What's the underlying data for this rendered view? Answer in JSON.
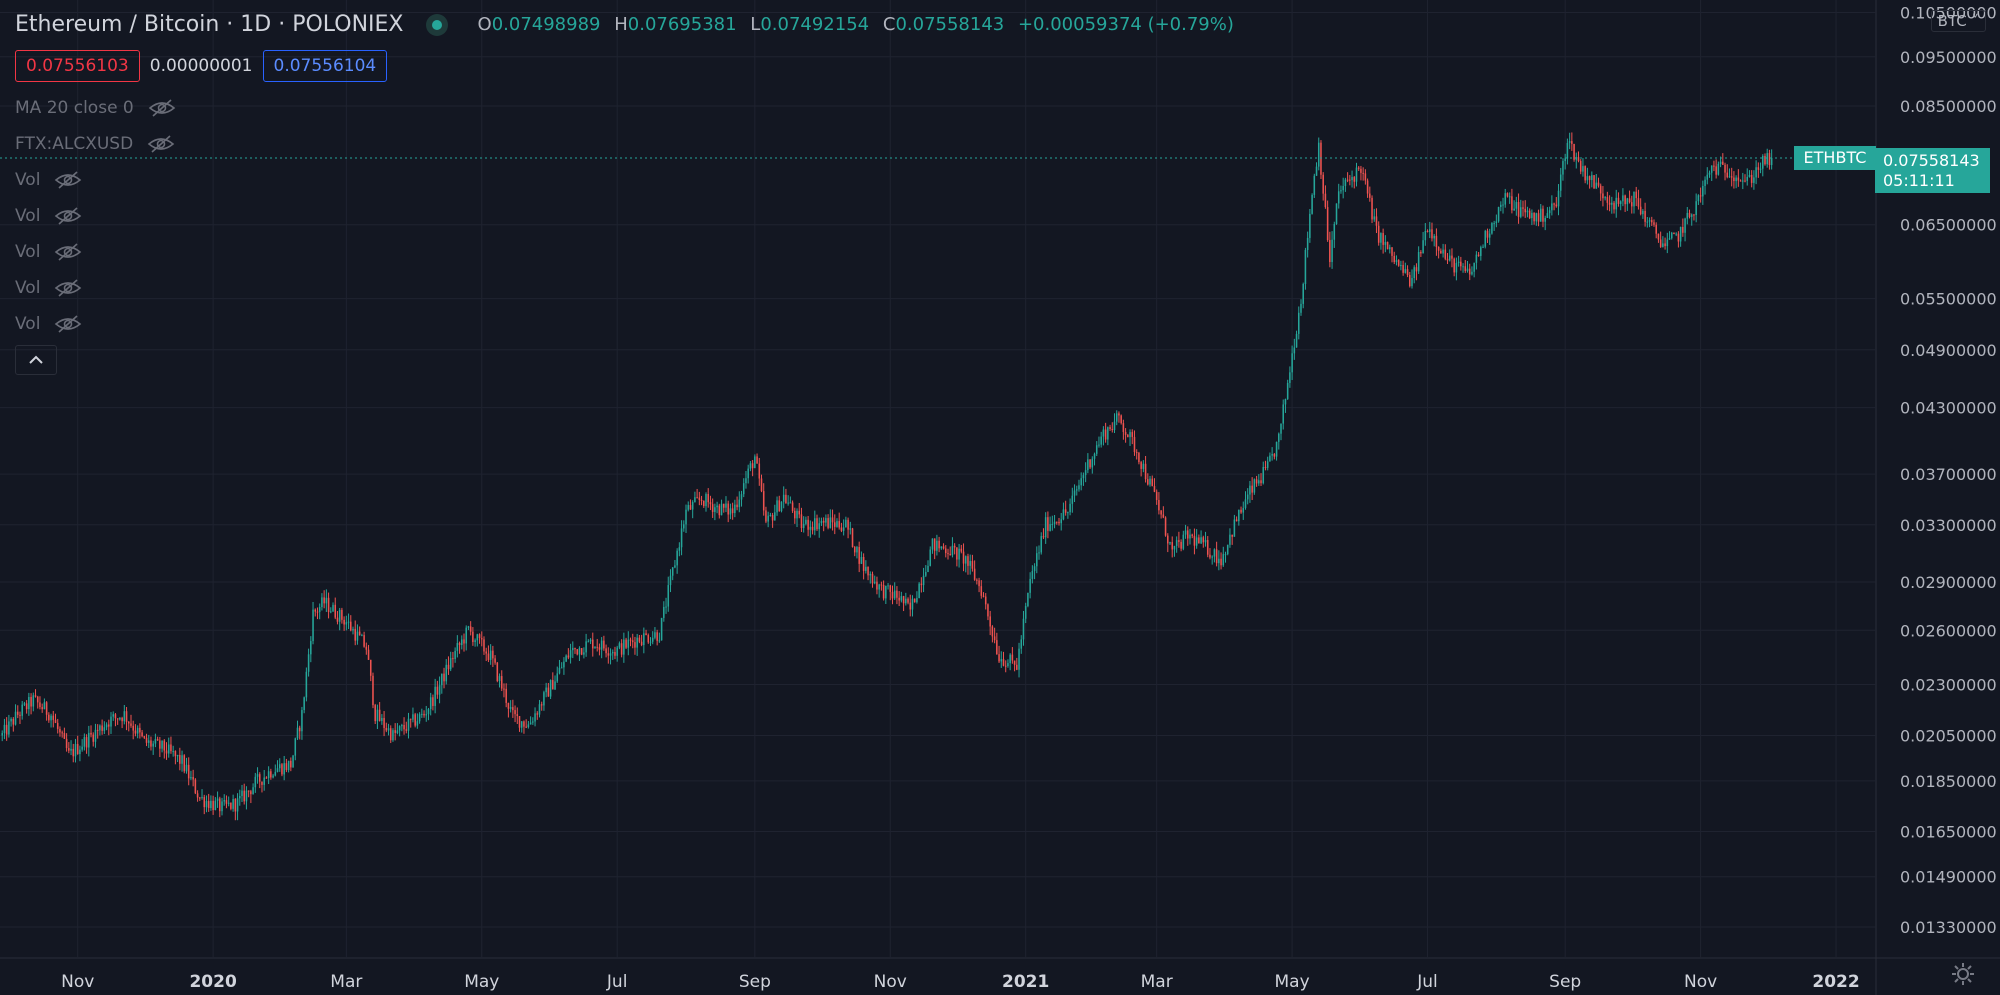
{
  "header": {
    "symbol_title": "Ethereum / Bitcoin · 1D · POLONIEX",
    "ohlc": {
      "o_label": "O",
      "o": "0.07498989",
      "h_label": "H",
      "h": "0.07695381",
      "l_label": "L",
      "l": "0.07492154",
      "c_label": "C",
      "c": "0.07558143",
      "change": "+0.00059374 (+0.79%)"
    }
  },
  "bid_ask": {
    "bid": "0.07556103",
    "spread": "0.00000001",
    "ask": "0.07556104"
  },
  "indicators": [
    {
      "label": "MA 20 close 0"
    },
    {
      "label": "FTX:ALCXUSD"
    },
    {
      "label": "Vol"
    },
    {
      "label": "Vol"
    },
    {
      "label": "Vol"
    },
    {
      "label": "Vol"
    },
    {
      "label": "Vol"
    }
  ],
  "price_scale": {
    "currency": "BTC",
    "symbol_tag": "ETHBTC",
    "last_price": "0.07558143",
    "countdown": "05:11:11"
  },
  "colors": {
    "up": "#26a69a",
    "down": "#ef5350",
    "background": "#131722",
    "grid": "#1f2330"
  },
  "chart_data": {
    "type": "candlestick",
    "title": "Ethereum / Bitcoin · 1D · POLONIEX",
    "y_scale": "log",
    "ylim": [
      0.0124,
      0.108
    ],
    "yticks": [
      "0.10500000",
      "0.09500000",
      "0.08500000",
      "0.07558143",
      "0.06500000",
      "0.05500000",
      "0.04900000",
      "0.04300000",
      "0.03700000",
      "0.03300000",
      "0.02900000",
      "0.02600000",
      "0.02300000",
      "0.02050000",
      "0.01850000",
      "0.01650000",
      "0.01490000",
      "0.01330000"
    ],
    "ytick_values": [
      0.105,
      0.095,
      0.085,
      0.07558143,
      0.065,
      0.055,
      0.049,
      0.043,
      0.037,
      0.033,
      0.029,
      0.026,
      0.023,
      0.0205,
      0.0185,
      0.0165,
      0.0149,
      0.0133
    ],
    "xlim": [
      "2019-09-27",
      "2022-01-19"
    ],
    "xticks": [
      {
        "label": "Nov",
        "date": "2019-11-01",
        "bold": false
      },
      {
        "label": "2020",
        "date": "2020-01-01",
        "bold": true
      },
      {
        "label": "Mar",
        "date": "2020-03-01",
        "bold": false
      },
      {
        "label": "May",
        "date": "2020-05-01",
        "bold": false
      },
      {
        "label": "Jul",
        "date": "2020-07-01",
        "bold": false
      },
      {
        "label": "Sep",
        "date": "2020-09-01",
        "bold": false
      },
      {
        "label": "Nov",
        "date": "2020-11-01",
        "bold": false
      },
      {
        "label": "2021",
        "date": "2021-01-01",
        "bold": true
      },
      {
        "label": "Mar",
        "date": "2021-03-01",
        "bold": false
      },
      {
        "label": "May",
        "date": "2021-05-01",
        "bold": false
      },
      {
        "label": "Jul",
        "date": "2021-07-01",
        "bold": false
      },
      {
        "label": "Sep",
        "date": "2021-09-01",
        "bold": false
      },
      {
        "label": "Nov",
        "date": "2021-11-01",
        "bold": false
      },
      {
        "label": "2022",
        "date": "2022-01-01",
        "bold": true
      }
    ],
    "last_price": 0.07558143,
    "approx_close_path": [
      [
        "2019-09-28",
        0.0205
      ],
      [
        "2019-10-05",
        0.0215
      ],
      [
        "2019-10-12",
        0.0222
      ],
      [
        "2019-10-20",
        0.0215
      ],
      [
        "2019-10-28",
        0.0196
      ],
      [
        "2019-11-05",
        0.0203
      ],
      [
        "2019-11-15",
        0.0212
      ],
      [
        "2019-11-22",
        0.0215
      ],
      [
        "2019-12-01",
        0.0202
      ],
      [
        "2019-12-10",
        0.0199
      ],
      [
        "2019-12-18",
        0.0193
      ],
      [
        "2019-12-26",
        0.0178
      ],
      [
        "2020-01-05",
        0.0174
      ],
      [
        "2020-01-12",
        0.0176
      ],
      [
        "2020-01-20",
        0.0184
      ],
      [
        "2020-01-28",
        0.019
      ],
      [
        "2020-02-05",
        0.0192
      ],
      [
        "2020-02-10",
        0.0215
      ],
      [
        "2020-02-15",
        0.027
      ],
      [
        "2020-02-20",
        0.0277
      ],
      [
        "2020-03-01",
        0.0265
      ],
      [
        "2020-03-10",
        0.025
      ],
      [
        "2020-03-14",
        0.0215
      ],
      [
        "2020-03-22",
        0.0205
      ],
      [
        "2020-04-05",
        0.0215
      ],
      [
        "2020-04-10",
        0.0225
      ],
      [
        "2020-04-18",
        0.0245
      ],
      [
        "2020-04-25",
        0.026
      ],
      [
        "2020-05-05",
        0.0245
      ],
      [
        "2020-05-15",
        0.0214
      ],
      [
        "2020-05-22",
        0.021
      ],
      [
        "2020-05-30",
        0.0225
      ],
      [
        "2020-06-10",
        0.0248
      ],
      [
        "2020-06-20",
        0.0253
      ],
      [
        "2020-06-30",
        0.0248
      ],
      [
        "2020-07-10",
        0.0255
      ],
      [
        "2020-07-20",
        0.0258
      ],
      [
        "2020-07-25",
        0.029
      ],
      [
        "2020-08-01",
        0.034
      ],
      [
        "2020-08-08",
        0.035
      ],
      [
        "2020-08-15",
        0.0343
      ],
      [
        "2020-08-22",
        0.034
      ],
      [
        "2020-09-01",
        0.0385
      ],
      [
        "2020-09-06",
        0.033
      ],
      [
        "2020-09-14",
        0.0352
      ],
      [
        "2020-09-22",
        0.033
      ],
      [
        "2020-10-01",
        0.0332
      ],
      [
        "2020-10-12",
        0.033
      ],
      [
        "2020-10-20",
        0.03
      ],
      [
        "2020-10-28",
        0.0285
      ],
      [
        "2020-11-05",
        0.028
      ],
      [
        "2020-11-10",
        0.0272
      ],
      [
        "2020-11-20",
        0.0315
      ],
      [
        "2020-11-28",
        0.0312
      ],
      [
        "2020-12-05",
        0.0305
      ],
      [
        "2020-12-12",
        0.0285
      ],
      [
        "2020-12-20",
        0.0245
      ],
      [
        "2020-12-28",
        0.024
      ],
      [
        "2021-01-03",
        0.029
      ],
      [
        "2021-01-10",
        0.033
      ],
      [
        "2021-01-20",
        0.034
      ],
      [
        "2021-01-28",
        0.0375
      ],
      [
        "2021-02-05",
        0.0405
      ],
      [
        "2021-02-12",
        0.042
      ],
      [
        "2021-02-20",
        0.039
      ],
      [
        "2021-03-01",
        0.0348
      ],
      [
        "2021-03-08",
        0.031
      ],
      [
        "2021-03-15",
        0.0322
      ],
      [
        "2021-03-22",
        0.0315
      ],
      [
        "2021-03-30",
        0.0305
      ],
      [
        "2021-04-05",
        0.033
      ],
      [
        "2021-04-12",
        0.0355
      ],
      [
        "2021-04-20",
        0.0375
      ],
      [
        "2021-04-25",
        0.04
      ],
      [
        "2021-05-01",
        0.0485
      ],
      [
        "2021-05-05",
        0.055
      ],
      [
        "2021-05-10",
        0.07
      ],
      [
        "2021-05-13",
        0.078
      ],
      [
        "2021-05-18",
        0.06
      ],
      [
        "2021-05-22",
        0.07
      ],
      [
        "2021-06-01",
        0.074
      ],
      [
        "2021-06-08",
        0.064
      ],
      [
        "2021-06-16",
        0.06
      ],
      [
        "2021-06-24",
        0.057
      ],
      [
        "2021-07-01",
        0.065
      ],
      [
        "2021-07-10",
        0.06
      ],
      [
        "2021-07-20",
        0.058
      ],
      [
        "2021-07-28",
        0.064
      ],
      [
        "2021-08-05",
        0.069
      ],
      [
        "2021-08-12",
        0.067
      ],
      [
        "2021-08-20",
        0.066
      ],
      [
        "2021-08-28",
        0.068
      ],
      [
        "2021-09-02",
        0.079
      ],
      [
        "2021-09-08",
        0.074
      ],
      [
        "2021-09-16",
        0.0705
      ],
      [
        "2021-09-24",
        0.068
      ],
      [
        "2021-10-02",
        0.069
      ],
      [
        "2021-10-10",
        0.0645
      ],
      [
        "2021-10-16",
        0.062
      ],
      [
        "2021-10-22",
        0.0635
      ],
      [
        "2021-10-30",
        0.068
      ],
      [
        "2021-11-06",
        0.074
      ],
      [
        "2021-11-14",
        0.0735
      ],
      [
        "2021-11-22",
        0.0715
      ],
      [
        "2021-11-28",
        0.0745
      ],
      [
        "2021-12-03",
        0.07558143
      ]
    ]
  }
}
